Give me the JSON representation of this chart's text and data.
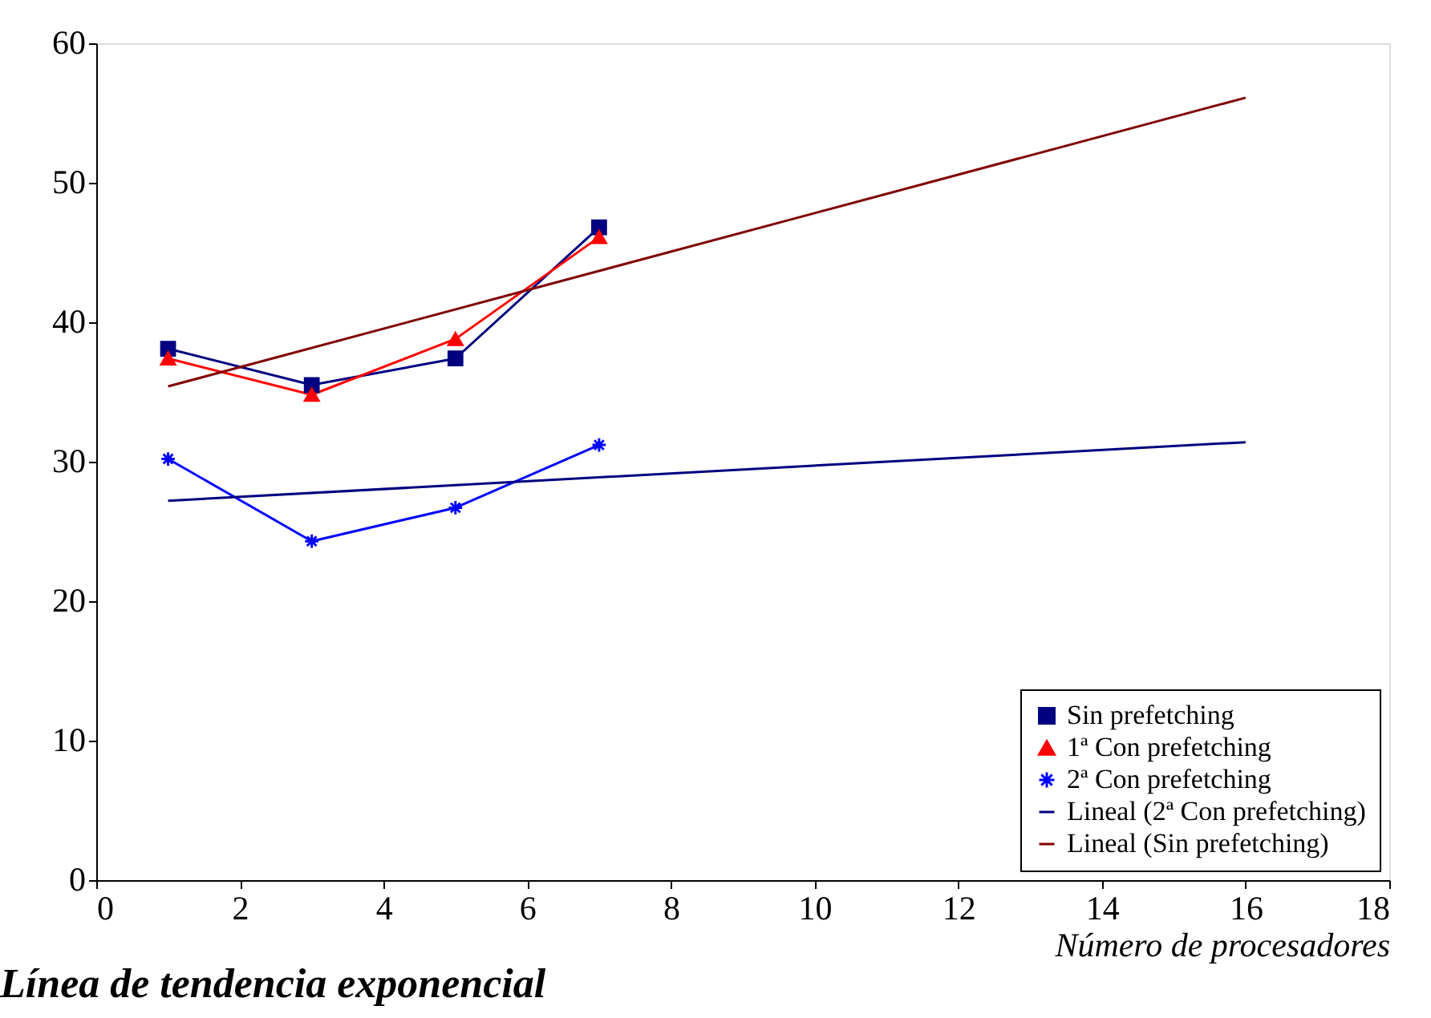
{
  "chart_data": {
    "type": "line",
    "xlabel": "Número de procesadores",
    "xlim": [
      0,
      18
    ],
    "xticks": [
      0,
      2,
      4,
      6,
      8,
      10,
      12,
      14,
      16,
      18
    ],
    "ylim": [
      0,
      60
    ],
    "yticks": [
      0,
      10,
      20,
      30,
      40,
      50,
      60
    ],
    "grid": false,
    "legend": "bottom right",
    "annotations": [
      "Línea de tendencia exponencial"
    ],
    "series": [
      {
        "name": "Sin prefetching",
        "color": "#000080",
        "marker": "square",
        "x": [
          1,
          3,
          5,
          7
        ],
        "values": [
          38.1,
          35.5,
          37.4,
          46.8
        ]
      },
      {
        "name": "1ª Con prefetching",
        "color": "#ff0000",
        "marker": "triangle",
        "x": [
          1,
          3,
          5,
          7
        ],
        "values": [
          37.4,
          34.8,
          38.8,
          46.1
        ]
      },
      {
        "name": "2ª Con prefetching",
        "color": "#0000ff",
        "marker": "cross",
        "x": [
          1,
          3,
          5,
          7
        ],
        "values": [
          30.2,
          24.3,
          26.7,
          31.2
        ]
      },
      {
        "name": "Lineal (2ª Con prefetching)",
        "color": "#000080",
        "marker": "none",
        "type": "line",
        "x": [
          1,
          16
        ],
        "values": [
          27.2,
          31.4
        ]
      },
      {
        "name": "Lineal (Sin prefetching)",
        "color": "#800000",
        "marker": "none",
        "type": "line",
        "x": [
          1,
          16
        ],
        "values": [
          35.4,
          56.1
        ]
      }
    ]
  }
}
